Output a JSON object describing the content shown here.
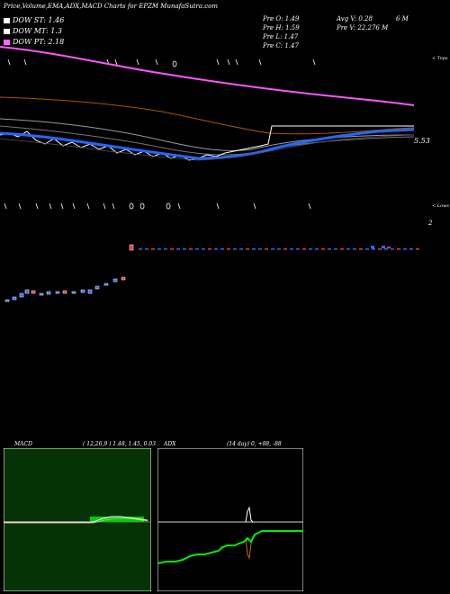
{
  "header": {
    "title": "Price,Volume,EMA,ADX,MACD Charts for EPZM MunafaSutra.com"
  },
  "legend": [
    {
      "label": "DOW ST: 1.46",
      "color": "#ffffff"
    },
    {
      "label": "DOW MT: 1.3",
      "color": "#ffffff"
    },
    {
      "label": "DOW PT: 2.18",
      "color": "#ff66ff"
    }
  ],
  "quote": {
    "prev_o": "Pre   O: 1.49",
    "prev_h": "Pre   H: 1.59",
    "prev_l": "Pre   L: 1.47",
    "prev_c": "Pre   C: 1.47",
    "avg_v": "Avg V: 0.28",
    "avg_v_unit": "6   M",
    "pre_v": "Pre   V: 22.276   M"
  },
  "price_panel": {
    "label_top": "< Tops",
    "label_low": "< Lows",
    "last_price_label": "5.53",
    "volume_scale_label": "2"
  },
  "macd": {
    "title": "MACD",
    "params": "( 12,26,9 ) 1.48,  1.45,  0.03"
  },
  "adx": {
    "title": "ADX",
    "params": "(14  day) 0,  +88,  -88"
  },
  "colors": {
    "pink_ema": "#ff55ff",
    "blue_ema": "#2255ff",
    "orange_ema": "#cc6600",
    "macd_green": "#00cc00",
    "adx_green": "#00ff00",
    "bull_candle": "#3366ff",
    "bear_candle": "#ff3333"
  }
}
